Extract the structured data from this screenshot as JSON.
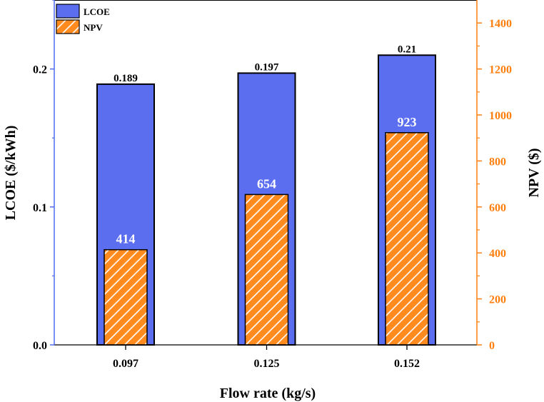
{
  "chart_data": {
    "type": "bar",
    "categories": [
      "0.097",
      "0.125",
      "0.152"
    ],
    "series": [
      {
        "name": "LCOE",
        "axis": "left",
        "values": [
          0.189,
          0.197,
          0.21
        ],
        "labels": [
          "0.189",
          "0.197",
          "0.21"
        ],
        "color": "#5b6ef0",
        "pattern": "solid"
      },
      {
        "name": "NPV",
        "axis": "right",
        "values": [
          414,
          654,
          923
        ],
        "labels": [
          "414",
          "654",
          "923"
        ],
        "color": "#ff8a1e",
        "pattern": "diagonal-hatch"
      }
    ],
    "xlabel": "Flow rate (kg/s)",
    "ylabel_left": "LCOE ($/kWh)",
    "ylabel_right": "NPV ($)",
    "ylim_left": [
      0,
      0.25
    ],
    "ylim_right": [
      0,
      1500
    ],
    "yticks_left": [
      0.0,
      0.1,
      0.2
    ],
    "yticks_left_labels": [
      "0.0",
      "0.1",
      "0.2"
    ],
    "yticks_right": [
      0,
      200,
      400,
      600,
      800,
      1000,
      1200,
      1400
    ],
    "yticks_right_labels": [
      "0",
      "200",
      "400",
      "600",
      "800",
      "1000",
      "1200",
      "1400"
    ],
    "left_axis_color": "#4f6cf0",
    "right_axis_color": "#ff7f0e",
    "legend": {
      "position": "top-left",
      "entries": [
        "LCOE",
        "NPV"
      ]
    },
    "grid": false
  }
}
